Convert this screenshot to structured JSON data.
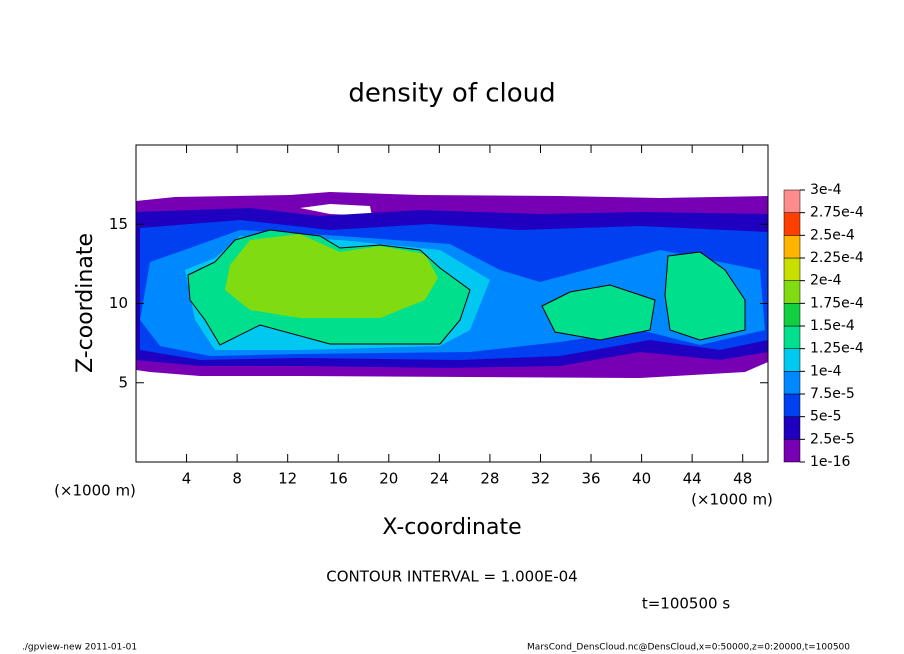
{
  "chart_data": {
    "type": "contour",
    "title": "density of cloud",
    "x_label": "X-coordinate",
    "y_label": "Z-coordinate",
    "x_unit": "(×1000 m)",
    "y_unit": "(×1000 m)",
    "xlim": [
      0,
      50
    ],
    "xticks": [
      4,
      8,
      12,
      16,
      20,
      24,
      28,
      32,
      36,
      40,
      44,
      48
    ],
    "ylim": [
      0,
      20
    ],
    "yticks": [
      5,
      10,
      15
    ],
    "colorbar": {
      "levels": [
        {
          "value": 1e-16,
          "label": "1e-16"
        },
        {
          "value": 2.5e-05,
          "label": "2.5e-5"
        },
        {
          "value": 5e-05,
          "label": "5e-5"
        },
        {
          "value": 7.5e-05,
          "label": "7.5e-5"
        },
        {
          "value": 0.0001,
          "label": "1e-4"
        },
        {
          "value": 0.000125,
          "label": "1.25e-4"
        },
        {
          "value": 0.00015,
          "label": "1.5e-4"
        },
        {
          "value": 0.000175,
          "label": "1.75e-4"
        },
        {
          "value": 0.0002,
          "label": "2e-4"
        },
        {
          "value": 0.000225,
          "label": "2.25e-4"
        },
        {
          "value": 0.00025,
          "label": "2.5e-4"
        },
        {
          "value": 0.000275,
          "label": "2.75e-4"
        },
        {
          "value": 0.0003,
          "label": "3e-4"
        }
      ],
      "colors": [
        "#7800b4",
        "#2000c0",
        "#0040f0",
        "#0088ff",
        "#00c8f0",
        "#00e08c",
        "#10d040",
        "#80dc10",
        "#c8e000",
        "#ffb400",
        "#ff4000",
        "#ff8c8c"
      ]
    },
    "contour_interval": "CONTOUR INTERVAL = 1.000E-04",
    "time": "t=100500 s",
    "footer_left": "./gpview-new  2011-01-01",
    "footer_right": "MarsCond_DensCloud.nc@DensCloud,x=0:50000,z=0:20000,t=100500"
  }
}
